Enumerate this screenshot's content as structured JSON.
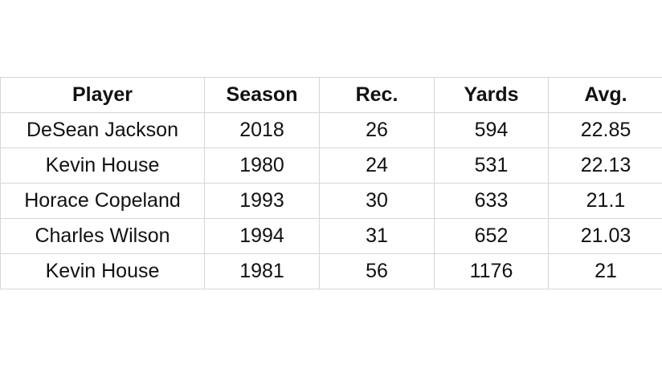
{
  "table": {
    "header": [
      "Player",
      "Season",
      "Rec.",
      "Yards",
      "Avg."
    ],
    "rows": [
      [
        "DeSean Jackson",
        "2018",
        "26",
        "594",
        "22.85"
      ],
      [
        "Kevin House",
        "1980",
        "24",
        "531",
        "22.13"
      ],
      [
        "Horace Copeland",
        "1993",
        "30",
        "633",
        "21.1"
      ],
      [
        "Charles Wilson",
        "1994",
        "31",
        "652",
        "21.03"
      ],
      [
        "Kevin House",
        "1981",
        "56",
        "1176",
        "21"
      ]
    ]
  }
}
